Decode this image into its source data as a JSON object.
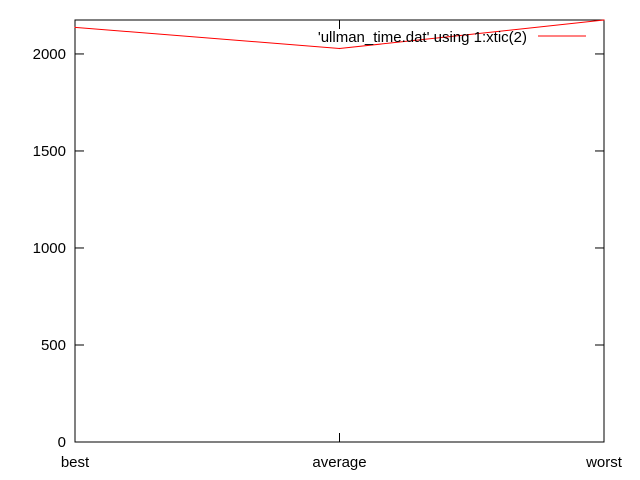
{
  "chart_data": {
    "type": "line",
    "title": "",
    "xlabel": "",
    "ylabel": "",
    "categories": [
      "best",
      "average",
      "worst"
    ],
    "series": [
      {
        "name": "'ullman_time.dat' using 1:xtic(2)",
        "values": [
          2137,
          2028,
          2175
        ],
        "color": "#ff0000"
      }
    ],
    "ylim": [
      0,
      2175
    ],
    "yticks": [
      0,
      500,
      1000,
      1500,
      2000
    ],
    "grid": false,
    "legend_position": "top-right",
    "axis_color": "#000000"
  }
}
